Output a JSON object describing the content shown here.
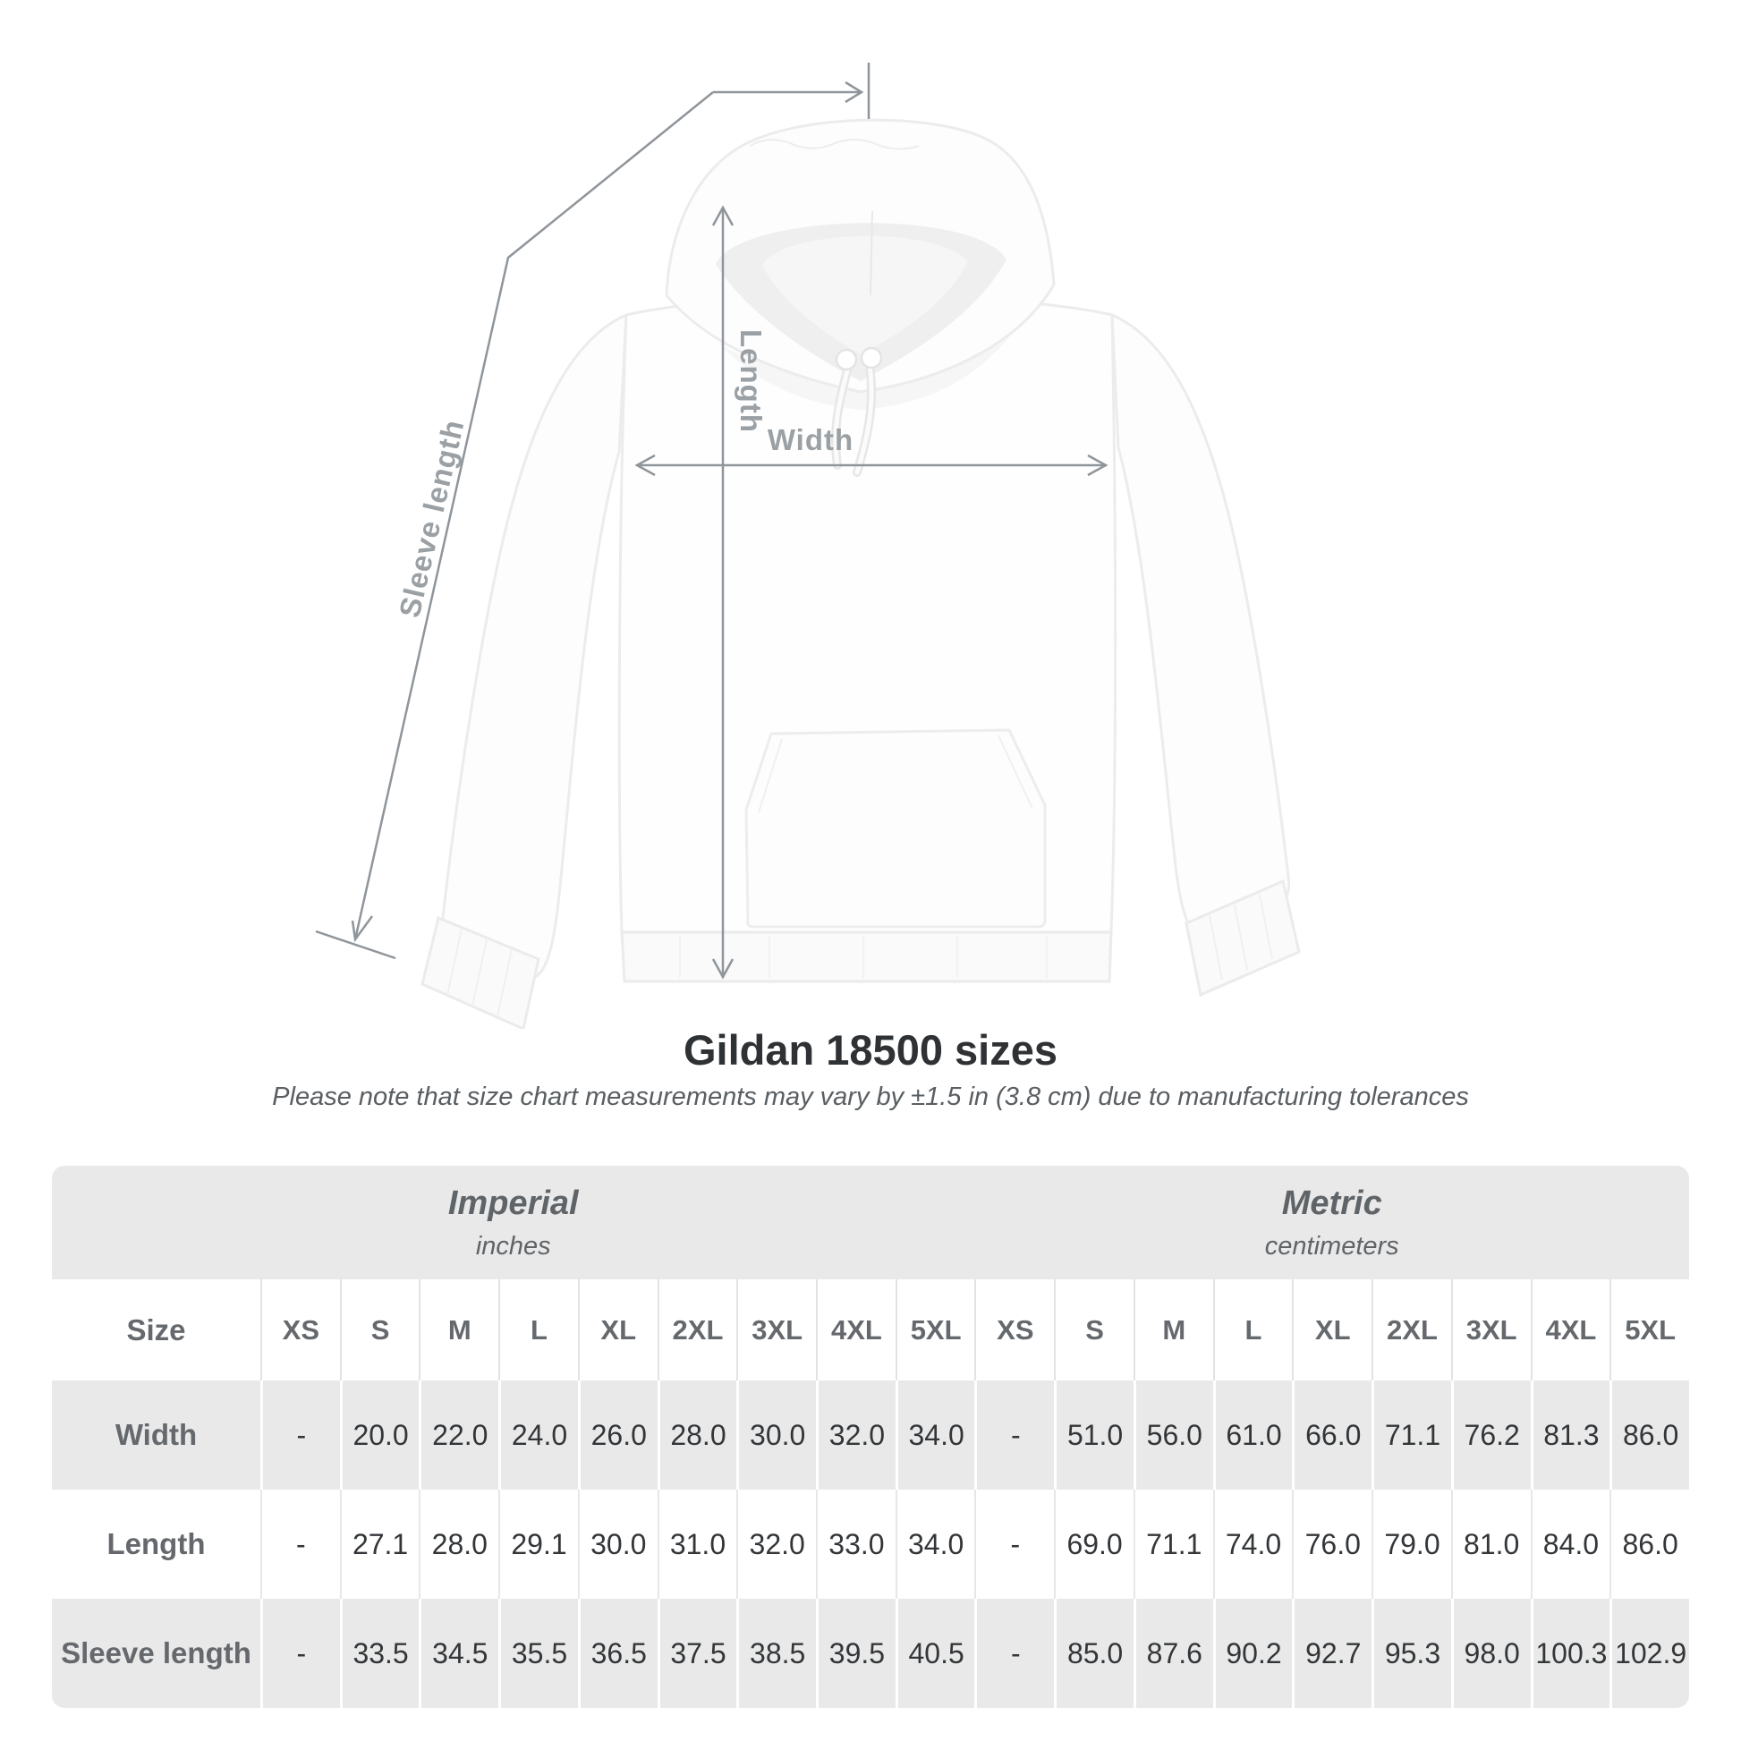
{
  "title": "Gildan 18500 sizes",
  "subtitle": "Please note that size chart measurements may vary by ±1.5 in (3.8 cm) due to manufacturing tolerances",
  "diagram": {
    "sleeve_label": "Sleeve length",
    "length_label": "Length",
    "width_label": "Width",
    "line_color": "#8f959a",
    "label_color": "#9aa0a4"
  },
  "chart_data": {
    "type": "table",
    "title": "Gildan 18500 sizes",
    "note": "Please note that size chart measurements may vary by ±1.5 in (3.8 cm) due to manufacturing tolerances",
    "corner_label": "Size",
    "unit_groups": [
      {
        "label": "Imperial",
        "sublabel": "inches"
      },
      {
        "label": "Metric",
        "sublabel": "centimeters"
      }
    ],
    "sizes": [
      "XS",
      "S",
      "M",
      "L",
      "XL",
      "2XL",
      "3XL",
      "4XL",
      "5XL"
    ],
    "rows": [
      {
        "label": "Width",
        "imperial": [
          "-",
          "20.0",
          "22.0",
          "24.0",
          "26.0",
          "28.0",
          "30.0",
          "32.0",
          "34.0"
        ],
        "metric": [
          "-",
          "51.0",
          "56.0",
          "61.0",
          "66.0",
          "71.1",
          "76.2",
          "81.3",
          "86.0"
        ]
      },
      {
        "label": "Length",
        "imperial": [
          "-",
          "27.1",
          "28.0",
          "29.1",
          "30.0",
          "31.0",
          "32.0",
          "33.0",
          "34.0"
        ],
        "metric": [
          "-",
          "69.0",
          "71.1",
          "74.0",
          "76.0",
          "79.0",
          "81.0",
          "84.0",
          "86.0"
        ]
      },
      {
        "label": "Sleeve length",
        "imperial": [
          "-",
          "33.5",
          "34.5",
          "35.5",
          "36.5",
          "37.5",
          "38.5",
          "39.5",
          "40.5"
        ],
        "metric": [
          "-",
          "85.0",
          "87.6",
          "90.2",
          "92.7",
          "95.3",
          "98.0",
          "100.3",
          "102.9"
        ]
      }
    ],
    "layout": {
      "band_color": "#e9e9e9",
      "data_text_color": "#333639",
      "header_text_color": "#65696d"
    }
  }
}
